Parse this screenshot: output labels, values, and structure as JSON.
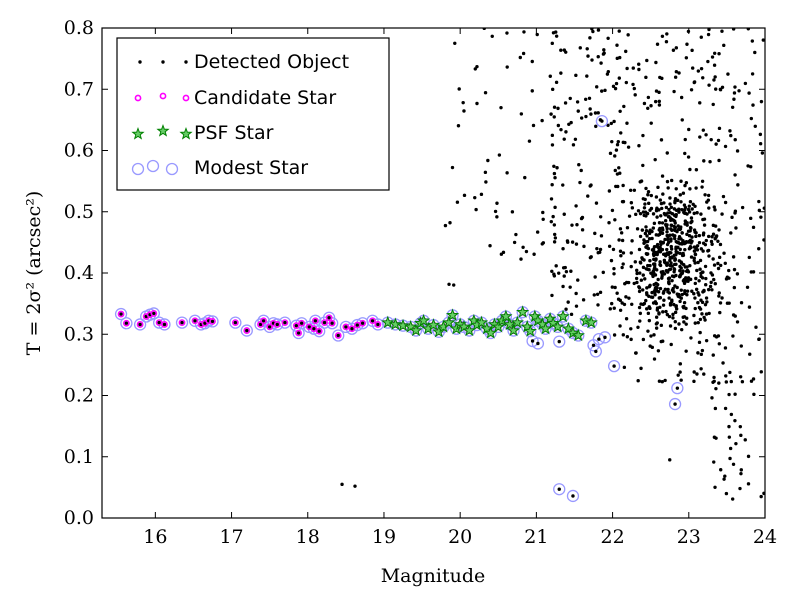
{
  "chart_data": {
    "type": "scatter",
    "xlabel": "Magnitude",
    "ylabel": "T = 2σ² (arcsec²)",
    "xlim": [
      15.3,
      24
    ],
    "ylim": [
      0.0,
      0.8
    ],
    "xticks": [
      "16",
      "17",
      "18",
      "19",
      "20",
      "21",
      "22",
      "23",
      "24"
    ],
    "yticks": [
      "0.0",
      "0.1",
      "0.2",
      "0.3",
      "0.4",
      "0.5",
      "0.6",
      "0.7",
      "0.8"
    ],
    "grid": false,
    "legend_position": "top-left",
    "colors": {
      "detected": "#000000",
      "candidate": "#ff00ff",
      "psf": "#008000",
      "modest": "#9999ff"
    },
    "series": [
      {
        "name": "Detected Object",
        "marker": "dot",
        "color": "#000000"
      },
      {
        "name": "Candidate Star",
        "marker": "small-circle",
        "color": "#ff00ff"
      },
      {
        "name": "PSF Star",
        "marker": "star",
        "color": "#008000"
      },
      {
        "name": "Modest Star",
        "marker": "open-circle",
        "color": "#9999ff"
      }
    ],
    "stellar_locus": [
      [
        15.55,
        0.333
      ],
      [
        15.62,
        0.318
      ],
      [
        15.8,
        0.316
      ],
      [
        15.88,
        0.329
      ],
      [
        15.93,
        0.332
      ],
      [
        15.98,
        0.334
      ],
      [
        16.05,
        0.319
      ],
      [
        16.12,
        0.316
      ],
      [
        16.35,
        0.319
      ],
      [
        16.52,
        0.322
      ],
      [
        16.6,
        0.316
      ],
      [
        16.65,
        0.318
      ],
      [
        16.7,
        0.322
      ],
      [
        16.75,
        0.321
      ],
      [
        17.05,
        0.319
      ],
      [
        17.2,
        0.306
      ],
      [
        17.38,
        0.316
      ],
      [
        17.42,
        0.322
      ],
      [
        17.5,
        0.312
      ],
      [
        17.55,
        0.318
      ],
      [
        17.6,
        0.316
      ],
      [
        17.7,
        0.319
      ],
      [
        17.85,
        0.314
      ],
      [
        17.88,
        0.302
      ],
      [
        17.92,
        0.318
      ],
      [
        18.02,
        0.312
      ],
      [
        18.08,
        0.309
      ],
      [
        18.1,
        0.322
      ],
      [
        18.15,
        0.305
      ],
      [
        18.22,
        0.319
      ],
      [
        18.28,
        0.327
      ],
      [
        18.32,
        0.318
      ],
      [
        18.4,
        0.298
      ],
      [
        18.5,
        0.312
      ],
      [
        18.58,
        0.309
      ],
      [
        18.65,
        0.315
      ],
      [
        18.72,
        0.318
      ],
      [
        18.85,
        0.322
      ],
      [
        18.92,
        0.316
      ]
    ],
    "psf_stars": [
      [
        19.05,
        0.319
      ],
      [
        19.15,
        0.316
      ],
      [
        19.25,
        0.314
      ],
      [
        19.35,
        0.312
      ],
      [
        19.42,
        0.306
      ],
      [
        19.48,
        0.318
      ],
      [
        19.52,
        0.322
      ],
      [
        19.58,
        0.309
      ],
      [
        19.65,
        0.315
      ],
      [
        19.72,
        0.304
      ],
      [
        19.78,
        0.312
      ],
      [
        19.85,
        0.319
      ],
      [
        19.9,
        0.331
      ],
      [
        19.95,
        0.309
      ],
      [
        20.0,
        0.316
      ],
      [
        20.05,
        0.312
      ],
      [
        20.12,
        0.306
      ],
      [
        20.18,
        0.322
      ],
      [
        20.22,
        0.315
      ],
      [
        20.28,
        0.319
      ],
      [
        20.35,
        0.309
      ],
      [
        20.4,
        0.302
      ],
      [
        20.45,
        0.316
      ],
      [
        20.5,
        0.312
      ],
      [
        20.55,
        0.322
      ],
      [
        20.6,
        0.329
      ],
      [
        20.65,
        0.316
      ],
      [
        20.7,
        0.306
      ],
      [
        20.75,
        0.319
      ],
      [
        20.82,
        0.336
      ],
      [
        20.88,
        0.312
      ],
      [
        20.92,
        0.305
      ],
      [
        20.98,
        0.329
      ],
      [
        21.02,
        0.322
      ],
      [
        21.08,
        0.316
      ],
      [
        21.12,
        0.309
      ],
      [
        21.18,
        0.325
      ],
      [
        21.22,
        0.318
      ],
      [
        21.28,
        0.312
      ],
      [
        21.35,
        0.329
      ],
      [
        21.42,
        0.309
      ],
      [
        21.48,
        0.302
      ],
      [
        21.55,
        0.298
      ],
      [
        21.65,
        0.322
      ],
      [
        21.72,
        0.319
      ]
    ],
    "modest_only": [
      [
        20.95,
        0.289
      ],
      [
        21.02,
        0.285
      ],
      [
        21.3,
        0.288
      ],
      [
        21.75,
        0.282
      ],
      [
        21.78,
        0.272
      ],
      [
        21.82,
        0.292
      ],
      [
        21.9,
        0.295
      ],
      [
        22.02,
        0.248
      ],
      [
        21.3,
        0.047
      ],
      [
        21.48,
        0.036
      ],
      [
        22.82,
        0.186
      ],
      [
        22.85,
        0.212
      ],
      [
        21.86,
        0.648
      ]
    ],
    "detected_objects": [
      [
        18.45,
        0.055
      ],
      [
        18.62,
        0.052
      ],
      [
        22.75,
        0.095
      ],
      [
        22.9,
        0.225
      ],
      [
        23.95,
        0.035
      ]
    ]
  }
}
